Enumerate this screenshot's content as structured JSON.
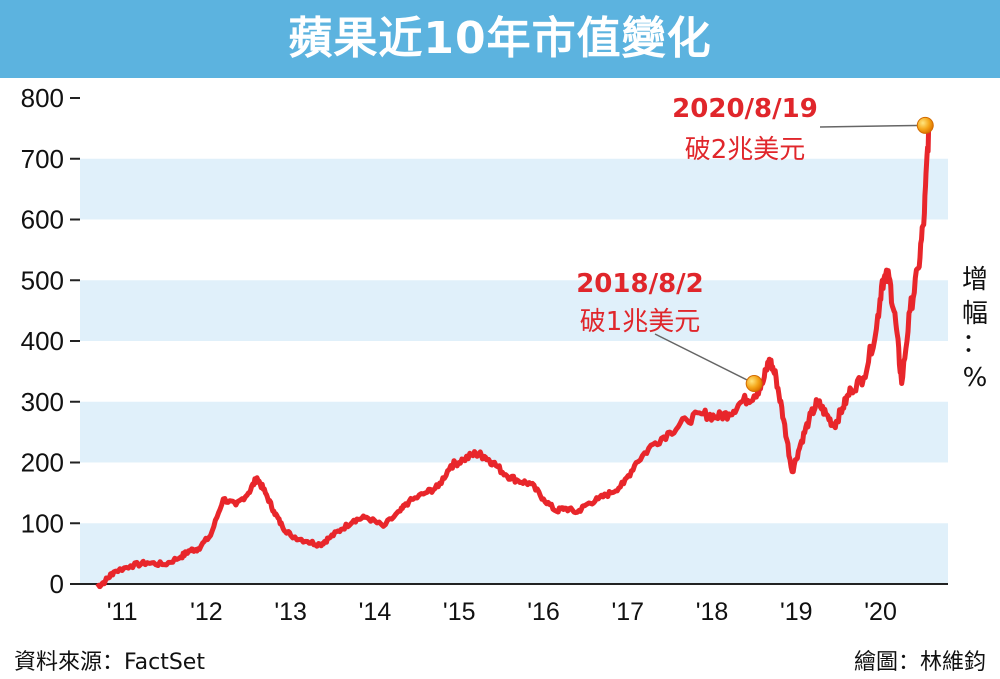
{
  "title": "蘋果近10年市值變化",
  "source": "資料來源：FactSet",
  "credit": "繪圖：林維鈞",
  "chart_data": {
    "type": "line",
    "title": "蘋果近10年市值變化",
    "ylabel": "增幅：%",
    "ylabel_chars": [
      "增",
      "幅",
      "：",
      "%"
    ],
    "ylim": [
      0,
      800
    ],
    "yticks": [
      0,
      100,
      200,
      300,
      400,
      500,
      600,
      700,
      800
    ],
    "xlim": [
      2010.6,
      2020.9
    ],
    "xticks": [
      {
        "x": 2011.1,
        "label": "'11"
      },
      {
        "x": 2012.1,
        "label": "'12"
      },
      {
        "x": 2013.1,
        "label": "'13"
      },
      {
        "x": 2014.1,
        "label": "'14"
      },
      {
        "x": 2015.1,
        "label": "'15"
      },
      {
        "x": 2016.1,
        "label": "'16"
      },
      {
        "x": 2017.1,
        "label": "'17"
      },
      {
        "x": 2018.1,
        "label": "'18"
      },
      {
        "x": 2019.1,
        "label": "'19"
      },
      {
        "x": 2020.1,
        "label": "'20"
      }
    ],
    "grid": "horizontal-bands",
    "line_color": "#e8262b",
    "band_color": "#e0f0fa",
    "series": [
      {
        "x": [
          2010.8,
          2010.9,
          2011.0,
          2011.2,
          2011.4,
          2011.6,
          2011.8,
          2011.9,
          2012.0,
          2012.15,
          2012.3,
          2012.45,
          2012.6,
          2012.7,
          2012.8,
          2012.9,
          2013.0,
          2013.1,
          2013.3,
          2013.45,
          2013.55,
          2013.7,
          2013.85,
          2014.0,
          2014.2,
          2014.4,
          2014.5,
          2014.7,
          2014.85,
          2015.0,
          2015.15,
          2015.3,
          2015.4,
          2015.5,
          2015.65,
          2015.8,
          2015.95,
          2016.1,
          2016.25,
          2016.35,
          2016.5,
          2016.6,
          2016.75,
          2016.9,
          2017.05,
          2017.2,
          2017.4,
          2017.6,
          2017.8,
          2018.0,
          2018.15,
          2018.3,
          2018.45,
          2018.6,
          2018.7,
          2018.78,
          2018.86,
          2018.95,
          2019.05,
          2019.15,
          2019.25,
          2019.35,
          2019.45,
          2019.55,
          2019.65,
          2019.75,
          2019.9,
          2020.05,
          2020.12,
          2020.2,
          2020.28,
          2020.35,
          2020.45,
          2020.55,
          2020.62,
          2020.67
        ],
        "y": [
          -5,
          5,
          20,
          30,
          35,
          32,
          45,
          55,
          58,
          80,
          140,
          130,
          150,
          175,
          150,
          120,
          95,
          80,
          70,
          65,
          75,
          90,
          105,
          110,
          95,
          120,
          135,
          150,
          160,
          195,
          205,
          215,
          210,
          200,
          180,
          170,
          165,
          140,
          120,
          125,
          118,
          130,
          140,
          150,
          165,
          200,
          230,
          250,
          270,
          280,
          275,
          280,
          300,
          310,
          330,
          370,
          340,
          270,
          185,
          230,
          270,
          300,
          280,
          260,
          290,
          320,
          340,
          420,
          500,
          505,
          430,
          330,
          450,
          520,
          610,
          750
        ]
      }
    ],
    "annotations": [
      {
        "x": 2018.6,
        "y": 330,
        "line1": "2018/8/2",
        "line2": "破1兆美元"
      },
      {
        "x": 2020.63,
        "y": 755,
        "line1": "2020/8/19",
        "line2": "破2兆美元"
      }
    ]
  }
}
